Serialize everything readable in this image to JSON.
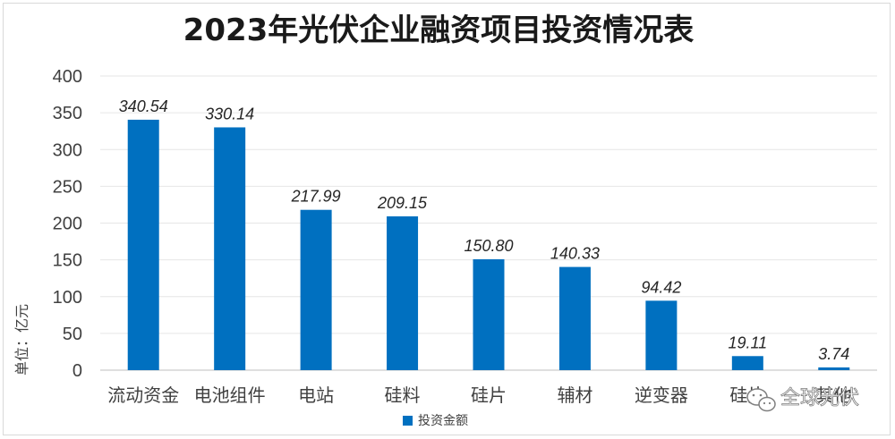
{
  "chart_data": {
    "type": "bar",
    "title": "2023年光伏企业融资项目投资情况表",
    "ylabel": "单位：亿元",
    "xlabel": "",
    "ylim": [
      0,
      400
    ],
    "yticks": [
      0,
      50,
      100,
      150,
      200,
      250,
      300,
      350,
      400
    ],
    "categories": [
      "流动资金",
      "电池组件",
      "电站",
      "硅料",
      "硅片",
      "辅材",
      "逆变器",
      "硅片",
      "其他"
    ],
    "series": [
      {
        "name": "投资金额",
        "values": [
          340.54,
          330.14,
          217.99,
          209.15,
          150.8,
          140.33,
          94.42,
          19.11,
          3.74
        ],
        "labels": [
          "340.54",
          "330.14",
          "217.99",
          "209.15",
          "150.80",
          "140.33",
          "94.42",
          "19.11",
          "3.74"
        ]
      }
    ],
    "legend": "bottom",
    "grid": true,
    "bar_color": "#0070c0"
  },
  "watermark": {
    "text": "全球光伏",
    "icon": "wechat-icon"
  }
}
